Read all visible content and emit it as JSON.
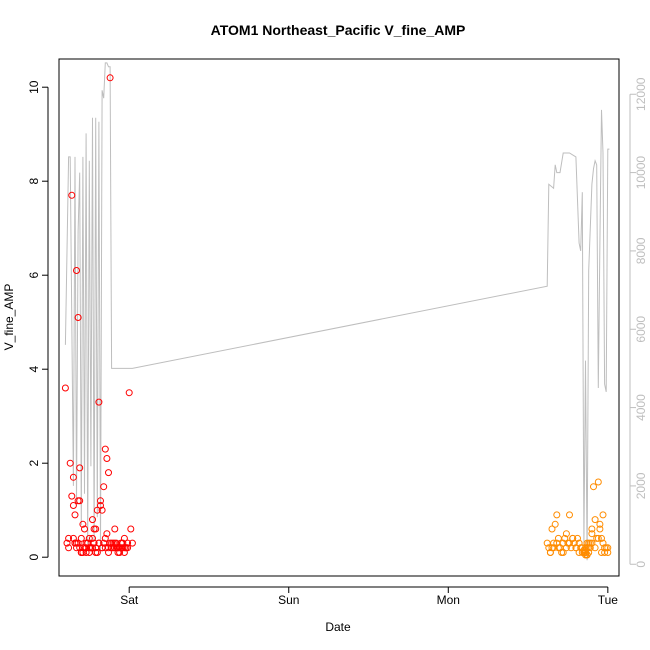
{
  "chart_data": {
    "type": "scatter",
    "title": "ATOM1 Northeast_Pacific V_fine_AMP",
    "xlabel": "Date",
    "ylabel": "V_fine_AMP",
    "x_ticks": [
      "Sat",
      "Sun",
      "Mon",
      "Tue"
    ],
    "x_range_days": [
      -0.44,
      3.07
    ],
    "y_ticks": [
      0,
      2,
      4,
      6,
      8,
      10
    ],
    "ylim": [
      -0.4,
      10.6
    ],
    "y2_ticks": [
      0,
      2000,
      4000,
      6000,
      8000,
      10000,
      12000
    ],
    "y2lim": [
      -300,
      12900
    ],
    "colors": {
      "segment1_points": "#ff0000",
      "segment2_points": "#ff8c00",
      "secondary_line": "#bebebe",
      "secondary_axis": "#bebebe"
    },
    "secondary_line": {
      "x_days": [
        -0.4,
        -0.38,
        -0.37,
        -0.35,
        -0.34,
        -0.33,
        -0.32,
        -0.31,
        -0.3,
        -0.29,
        -0.28,
        -0.27,
        -0.26,
        -0.25,
        -0.24,
        -0.23,
        -0.22,
        -0.21,
        -0.2,
        -0.19,
        -0.18,
        -0.17,
        -0.16,
        -0.15,
        -0.14,
        -0.13,
        -0.12,
        -0.11,
        -0.1,
        -0.09,
        -0.08,
        -0.07,
        -0.06,
        -0.05,
        -0.04,
        -0.03,
        -0.02,
        -0.01,
        0.0,
        0.01,
        0.02,
        2.62,
        2.63,
        2.66,
        2.67,
        2.68,
        2.7,
        2.72,
        2.76,
        2.8,
        2.82,
        2.83,
        2.84,
        2.85,
        2.86,
        2.87,
        2.88,
        2.9,
        2.91,
        2.92,
        2.93,
        2.94,
        2.95,
        2.96,
        2.97,
        2.98,
        2.99,
        3.0,
        3.01
      ],
      "values": [
        5600,
        10400,
        10400,
        2000,
        10400,
        1500,
        8500,
        10000,
        1000,
        10400,
        1800,
        11000,
        500,
        10300,
        2500,
        11400,
        600,
        11400,
        1200,
        11300,
        300,
        12100,
        11900,
        12800,
        12800,
        12700,
        12700,
        5000,
        5000,
        5000,
        5000,
        5000,
        5000,
        5000,
        5000,
        5000,
        5000,
        5000,
        5000,
        5000,
        5000,
        7100,
        9700,
        9600,
        10200,
        10000,
        10000,
        10500,
        10500,
        10400,
        8200,
        8000,
        9500,
        500,
        5200,
        100,
        7500,
        9700,
        10100,
        10300,
        10200,
        4500,
        8200,
        11600,
        10500,
        4600,
        4400,
        10600,
        10600
      ]
    },
    "series": [
      {
        "x_days": [
          -0.4,
          -0.39,
          -0.38,
          -0.37,
          -0.36,
          -0.35,
          -0.34,
          -0.33,
          -0.32,
          -0.31,
          -0.3,
          -0.29,
          -0.28,
          -0.27,
          -0.26,
          -0.25,
          -0.24,
          -0.23,
          -0.22,
          -0.21,
          -0.2,
          -0.19,
          -0.18,
          -0.17,
          -0.16,
          -0.15,
          -0.14,
          -0.13,
          -0.12,
          -0.11,
          -0.1,
          -0.09,
          -0.08,
          -0.07,
          -0.06,
          -0.05,
          -0.04,
          -0.03,
          -0.02,
          -0.01,
          0.0,
          0.01,
          0.02,
          -0.38,
          -0.36,
          -0.35,
          -0.34,
          -0.33,
          -0.32,
          -0.31,
          -0.3,
          -0.29,
          -0.28,
          -0.27,
          -0.26,
          -0.25,
          -0.24,
          -0.23,
          -0.22,
          -0.21,
          -0.2,
          -0.19,
          -0.18,
          -0.17,
          -0.16,
          -0.15,
          -0.14,
          -0.13,
          -0.12,
          -0.11,
          -0.1,
          -0.09,
          -0.08,
          -0.07,
          -0.06,
          -0.05,
          -0.04,
          -0.03,
          -0.02,
          -0.01,
          -0.35,
          -0.34,
          -0.33,
          -0.32,
          -0.31,
          -0.3,
          -0.29,
          -0.27,
          -0.25,
          -0.23,
          -0.21,
          -0.19,
          -0.17,
          -0.15,
          -0.13,
          -0.11,
          -0.09,
          -0.07,
          -0.05,
          -0.03
        ],
        "values": [
          3.6,
          0.3,
          0.4,
          2.0,
          7.7,
          1.7,
          0.3,
          6.1,
          5.1,
          1.2,
          0.4,
          0.7,
          0.6,
          0.2,
          0.3,
          0.4,
          0.2,
          0.8,
          0.3,
          0.6,
          1.0,
          3.3,
          1.2,
          1.0,
          1.5,
          2.3,
          2.1,
          1.8,
          10.2,
          0.2,
          0.3,
          0.6,
          0.3,
          0.2,
          0.1,
          0.2,
          0.3,
          0.4,
          0.2,
          0.2,
          3.5,
          0.6,
          0.3,
          0.2,
          1.3,
          1.1,
          0.9,
          0.3,
          1.2,
          1.9,
          0.1,
          0.2,
          0.2,
          0.1,
          0.3,
          0.1,
          0.2,
          0.4,
          0.6,
          0.2,
          0.1,
          0.3,
          1.1,
          0.2,
          0.3,
          0.4,
          0.5,
          0.2,
          0.3,
          0.2,
          0.2,
          0.3,
          0.2,
          0.1,
          0.2,
          0.3,
          0.2,
          0.1,
          0.2,
          0.3,
          0.4,
          0.3,
          0.2,
          0.3,
          0.2,
          0.1,
          0.1,
          0.3,
          0.2,
          0.2,
          0.1,
          0.3,
          0.2,
          0.2,
          0.1,
          0.3,
          0.2,
          0.2,
          0.3,
          0.2
        ]
      },
      {
        "x_days": [
          2.62,
          2.63,
          2.64,
          2.65,
          2.66,
          2.67,
          2.68,
          2.69,
          2.7,
          2.71,
          2.72,
          2.73,
          2.74,
          2.75,
          2.76,
          2.77,
          2.78,
          2.79,
          2.8,
          2.81,
          2.82,
          2.83,
          2.84,
          2.85,
          2.86,
          2.87,
          2.88,
          2.89,
          2.9,
          2.91,
          2.92,
          2.93,
          2.94,
          2.95,
          2.96,
          2.97,
          2.98,
          2.99,
          3.0,
          2.64,
          2.66,
          2.68,
          2.7,
          2.72,
          2.74,
          2.76,
          2.78,
          2.8,
          2.82,
          2.84,
          2.86,
          2.87,
          2.88,
          2.89,
          2.9,
          2.92,
          2.94,
          2.96,
          2.98,
          3.0,
          2.85,
          2.86,
          2.87,
          2.86,
          2.85,
          2.87,
          2.86,
          2.85,
          2.86,
          2.87,
          2.88,
          2.9,
          2.95,
          2.97,
          2.65,
          2.69
        ],
        "values": [
          0.3,
          0.2,
          0.1,
          0.2,
          0.3,
          0.7,
          0.9,
          0.4,
          0.2,
          0.1,
          0.3,
          0.4,
          0.5,
          0.3,
          0.9,
          0.2,
          0.4,
          0.3,
          0.2,
          0.4,
          0.3,
          0.2,
          0.1,
          0.1,
          0.2,
          0.3,
          0.2,
          0.3,
          0.6,
          1.5,
          0.8,
          0.4,
          1.6,
          0.6,
          0.4,
          0.3,
          0.1,
          0.2,
          0.2,
          0.1,
          0.2,
          0.3,
          0.2,
          0.1,
          0.2,
          0.3,
          0.4,
          0.2,
          0.1,
          0.2,
          0.1,
          0.05,
          0.1,
          0.2,
          0.3,
          0.2,
          0.4,
          0.1,
          0.2,
          0.1,
          0.1,
          0.05,
          0.05,
          0.1,
          0.15,
          0.2,
          0.05,
          0.1,
          0.15,
          0.05,
          0.3,
          0.5,
          0.7,
          0.9,
          0.6,
          0.2
        ]
      }
    ]
  }
}
